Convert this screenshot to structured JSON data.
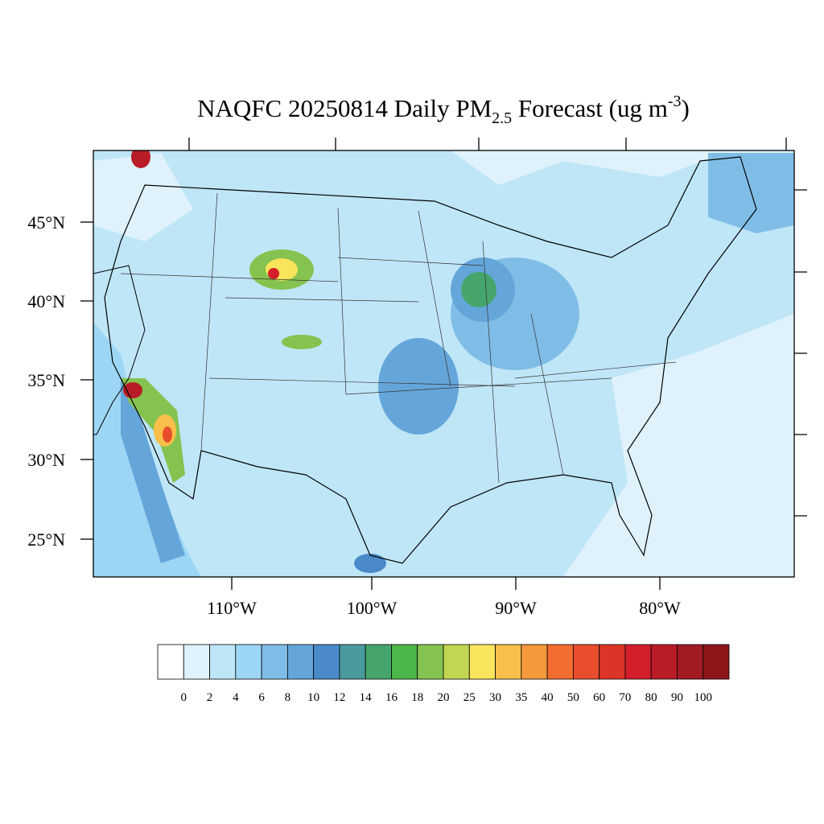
{
  "title": {
    "main": "NAQFC 20250814 Daily PM",
    "subscript": "2.5",
    "rest": " Forecast (ug m",
    "superscript": "-3",
    "end": ")"
  },
  "lat_labels": [
    "45°N",
    "40°N",
    "35°N",
    "30°N",
    "25°N"
  ],
  "lon_labels": [
    "110°W",
    "100°W",
    "90°W",
    "80°W"
  ],
  "colorbar": {
    "levels": [
      0,
      2,
      4,
      6,
      8,
      10,
      12,
      14,
      16,
      18,
      20,
      25,
      30,
      35,
      40,
      50,
      60,
      70,
      80,
      90,
      100
    ],
    "colors": [
      "#ffffff",
      "#dff2fb",
      "#bfe6f7",
      "#9dd6f5",
      "#80bde6",
      "#65a6da",
      "#4a8ac9",
      "#4a9a9d",
      "#46a56c",
      "#4cb64a",
      "#85c350",
      "#c2d654",
      "#f9e45b",
      "#f8c04a",
      "#f5993d",
      "#f26d2f",
      "#e84e2c",
      "#dc3427",
      "#d21f2a",
      "#b81c26",
      "#a11b22",
      "#8d1719"
    ]
  }
}
